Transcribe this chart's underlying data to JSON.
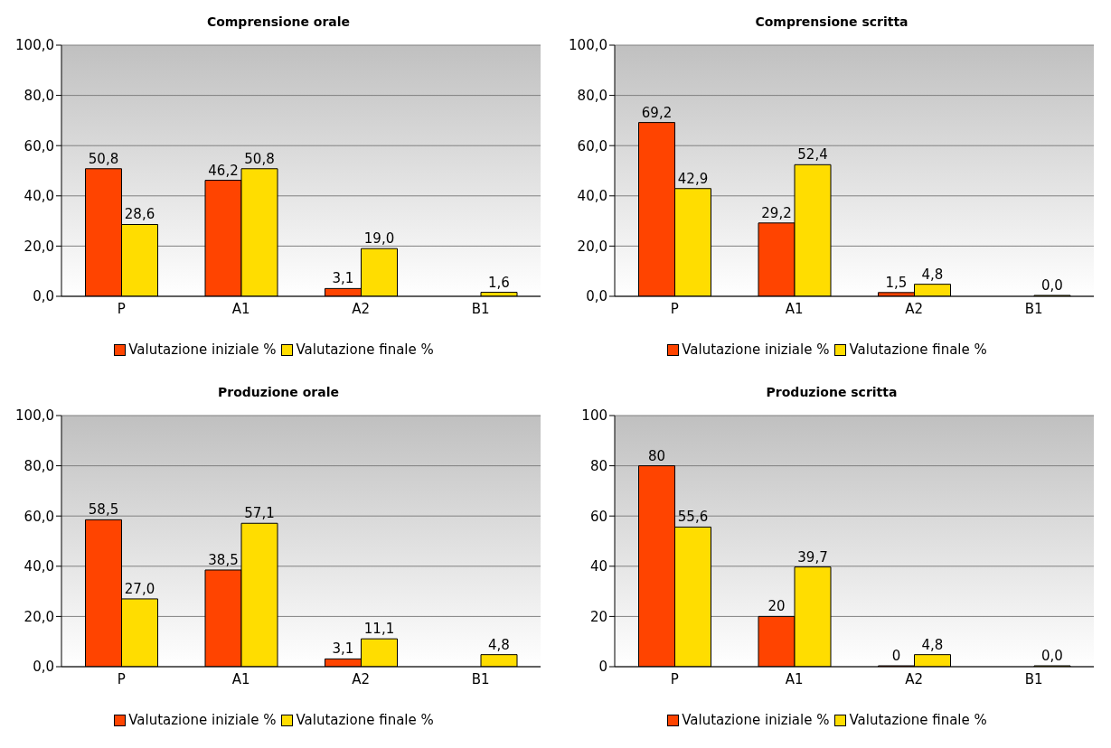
{
  "chart_data": [
    {
      "type": "bar",
      "title": "Comprensione orale",
      "categories": [
        "P",
        "A1",
        "A2",
        "B1"
      ],
      "series": [
        {
          "name": "Valutazione iniziale %",
          "color": "#ff4400",
          "values": [
            50.8,
            46.2,
            3.1,
            null
          ],
          "value_labels": [
            "50,8",
            "46,2",
            "3,1",
            null
          ]
        },
        {
          "name": "Valutazione finale %",
          "color": "#ffdd00",
          "values": [
            28.6,
            50.8,
            19.0,
            1.6
          ],
          "value_labels": [
            "28,6",
            "50,8",
            "19,0",
            "1,6"
          ]
        }
      ],
      "ylim": [
        0,
        100
      ],
      "yticks": [
        {
          "value": 0,
          "label": "0,0"
        },
        {
          "value": 20,
          "label": "20,0"
        },
        {
          "value": 40,
          "label": "40,0"
        },
        {
          "value": 60,
          "label": "60,0"
        },
        {
          "value": 80,
          "label": "80,0"
        },
        {
          "value": 100,
          "label": "100,0"
        }
      ],
      "grid": "y",
      "legend": "bottom"
    },
    {
      "type": "bar",
      "title": "Comprensione scritta",
      "categories": [
        "P",
        "A1",
        "A2",
        "B1"
      ],
      "series": [
        {
          "name": "Valutazione iniziale %",
          "color": "#ff4400",
          "values": [
            69.2,
            29.2,
            1.5,
            null
          ],
          "value_labels": [
            "69,2",
            "29,2",
            "1,5",
            null
          ]
        },
        {
          "name": "Valutazione finale %",
          "color": "#ffdd00",
          "values": [
            42.9,
            52.4,
            4.8,
            0.0
          ],
          "value_labels": [
            "42,9",
            "52,4",
            "4,8",
            "0,0"
          ]
        }
      ],
      "ylim": [
        0,
        100
      ],
      "yticks": [
        {
          "value": 0,
          "label": "0,0"
        },
        {
          "value": 20,
          "label": "20,0"
        },
        {
          "value": 40,
          "label": "40,0"
        },
        {
          "value": 60,
          "label": "60,0"
        },
        {
          "value": 80,
          "label": "80,0"
        },
        {
          "value": 100,
          "label": "100,0"
        }
      ],
      "grid": "y",
      "legend": "bottom"
    },
    {
      "type": "bar",
      "title": "Produzione orale",
      "categories": [
        "P",
        "A1",
        "A2",
        "B1"
      ],
      "series": [
        {
          "name": "Valutazione iniziale %",
          "color": "#ff4400",
          "values": [
            58.5,
            38.5,
            3.1,
            null
          ],
          "value_labels": [
            "58,5",
            "38,5",
            "3,1",
            null
          ]
        },
        {
          "name": "Valutazione finale %",
          "color": "#ffdd00",
          "values": [
            27.0,
            57.1,
            11.1,
            4.8
          ],
          "value_labels": [
            "27,0",
            "57,1",
            "11,1",
            "4,8"
          ]
        }
      ],
      "ylim": [
        0,
        100
      ],
      "yticks": [
        {
          "value": 0,
          "label": "0,0"
        },
        {
          "value": 20,
          "label": "20,0"
        },
        {
          "value": 40,
          "label": "40,0"
        },
        {
          "value": 60,
          "label": "60,0"
        },
        {
          "value": 80,
          "label": "80,0"
        },
        {
          "value": 100,
          "label": "100,0"
        }
      ],
      "grid": "y",
      "legend": "bottom"
    },
    {
      "type": "bar",
      "title": "Produzione scritta",
      "categories": [
        "P",
        "A1",
        "A2",
        "B1"
      ],
      "series": [
        {
          "name": "Valutazione iniziale %",
          "color": "#ff4400",
          "values": [
            80,
            20,
            0,
            null
          ],
          "value_labels": [
            "80",
            "20",
            "0",
            null
          ]
        },
        {
          "name": "Valutazione finale %",
          "color": "#ffdd00",
          "values": [
            55.6,
            39.7,
            4.8,
            0.0
          ],
          "value_labels": [
            "55,6",
            "39,7",
            "4,8",
            "0,0"
          ]
        }
      ],
      "ylim": [
        0,
        100
      ],
      "yticks": [
        0,
        20,
        40,
        60,
        80,
        100
      ],
      "grid": "y",
      "legend": "bottom"
    }
  ]
}
